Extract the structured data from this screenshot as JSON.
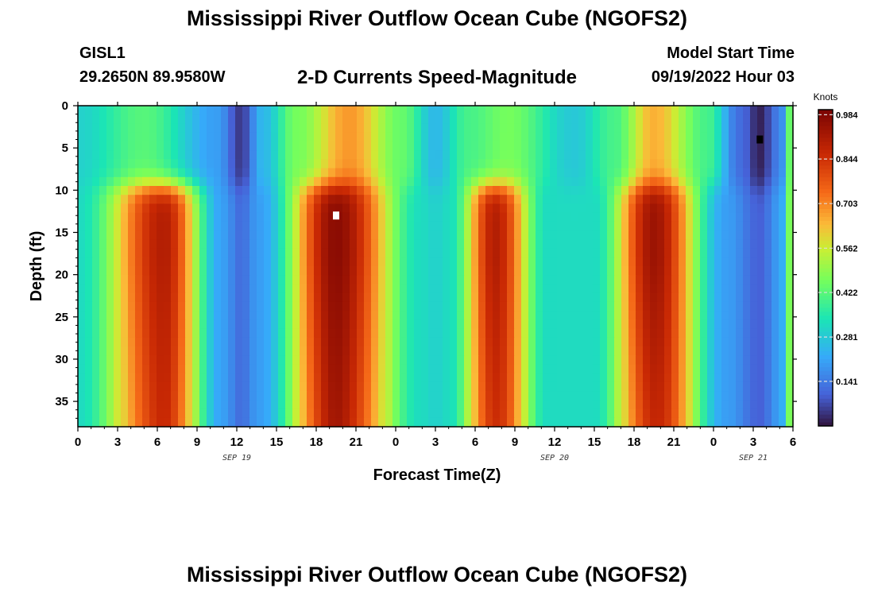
{
  "header": {
    "title": "Mississippi River Outflow Ocean Cube (NGOFS2)",
    "station": "GISL1",
    "coordinates": "29.2650N  89.9580W",
    "subtitle": "2-D Currents Speed-Magnitude",
    "model_start_label": "Model Start Time",
    "model_start_value": "09/19/2022 Hour 03"
  },
  "footer": {
    "title": "Mississippi River Outflow Ocean Cube (NGOFS2)"
  },
  "chart_data": {
    "type": "heatmap",
    "title": "2-D Currents Speed-Magnitude",
    "xlabel": "Forecast Time(Z)",
    "ylabel": "Depth (ft)",
    "x_ticks": [
      "0",
      "3",
      "6",
      "9",
      "12",
      "15",
      "18",
      "21",
      "0",
      "3",
      "6",
      "9",
      "12",
      "15",
      "18",
      "21",
      "0",
      "3",
      "6"
    ],
    "x_hours": [
      0,
      3,
      6,
      9,
      12,
      15,
      18,
      21,
      24,
      27,
      30,
      33,
      36,
      39,
      42,
      45,
      48,
      51,
      54
    ],
    "xlim": [
      0,
      54
    ],
    "date_labels": [
      {
        "text": "SEP 19",
        "hour": 12
      },
      {
        "text": "SEP 20",
        "hour": 36
      },
      {
        "text": "SEP 21",
        "hour": 51
      }
    ],
    "y_ticks": [
      "0",
      "5",
      "10",
      "15",
      "20",
      "25",
      "30",
      "35"
    ],
    "y_values": [
      0,
      5,
      10,
      15,
      20,
      25,
      30,
      35
    ],
    "ylim": [
      0,
      38
    ],
    "y_inverted": true,
    "colorbar": {
      "label": "Knots",
      "ticks": [
        "0.984",
        "0.844",
        "0.703",
        "0.562",
        "0.422",
        "0.281",
        "0.141"
      ],
      "tick_values": [
        0.984,
        0.844,
        0.703,
        0.562,
        0.422,
        0.281,
        0.141
      ],
      "range": [
        0,
        1.0
      ]
    },
    "max_marker": {
      "hour": 19.5,
      "depth": 13
    },
    "min_marker": {
      "hour": 51.5,
      "depth": 4
    },
    "deep_peaks": [
      {
        "hour": 6.5,
        "value": 0.9
      },
      {
        "hour": 19.5,
        "value": 0.97
      },
      {
        "hour": 31.5,
        "value": 0.9
      },
      {
        "hour": 43.5,
        "value": 0.94
      }
    ],
    "deep_minima": [
      {
        "hour": 12.3,
        "value": 0.12
      },
      {
        "hour": 27,
        "value": 0.3
      },
      {
        "hour": 51.5,
        "value": 0.1
      }
    ],
    "surface_minima": [
      {
        "hour": 12.3,
        "value": 0.05
      },
      {
        "hour": 27,
        "value": 0.25
      },
      {
        "hour": 37.5,
        "value": 0.28
      },
      {
        "hour": 51.5,
        "value": 0.02
      }
    ],
    "surface_maxima": [
      {
        "hour": 20.5,
        "value": 0.68
      },
      {
        "hour": 43.5,
        "value": 0.65
      }
    ]
  }
}
